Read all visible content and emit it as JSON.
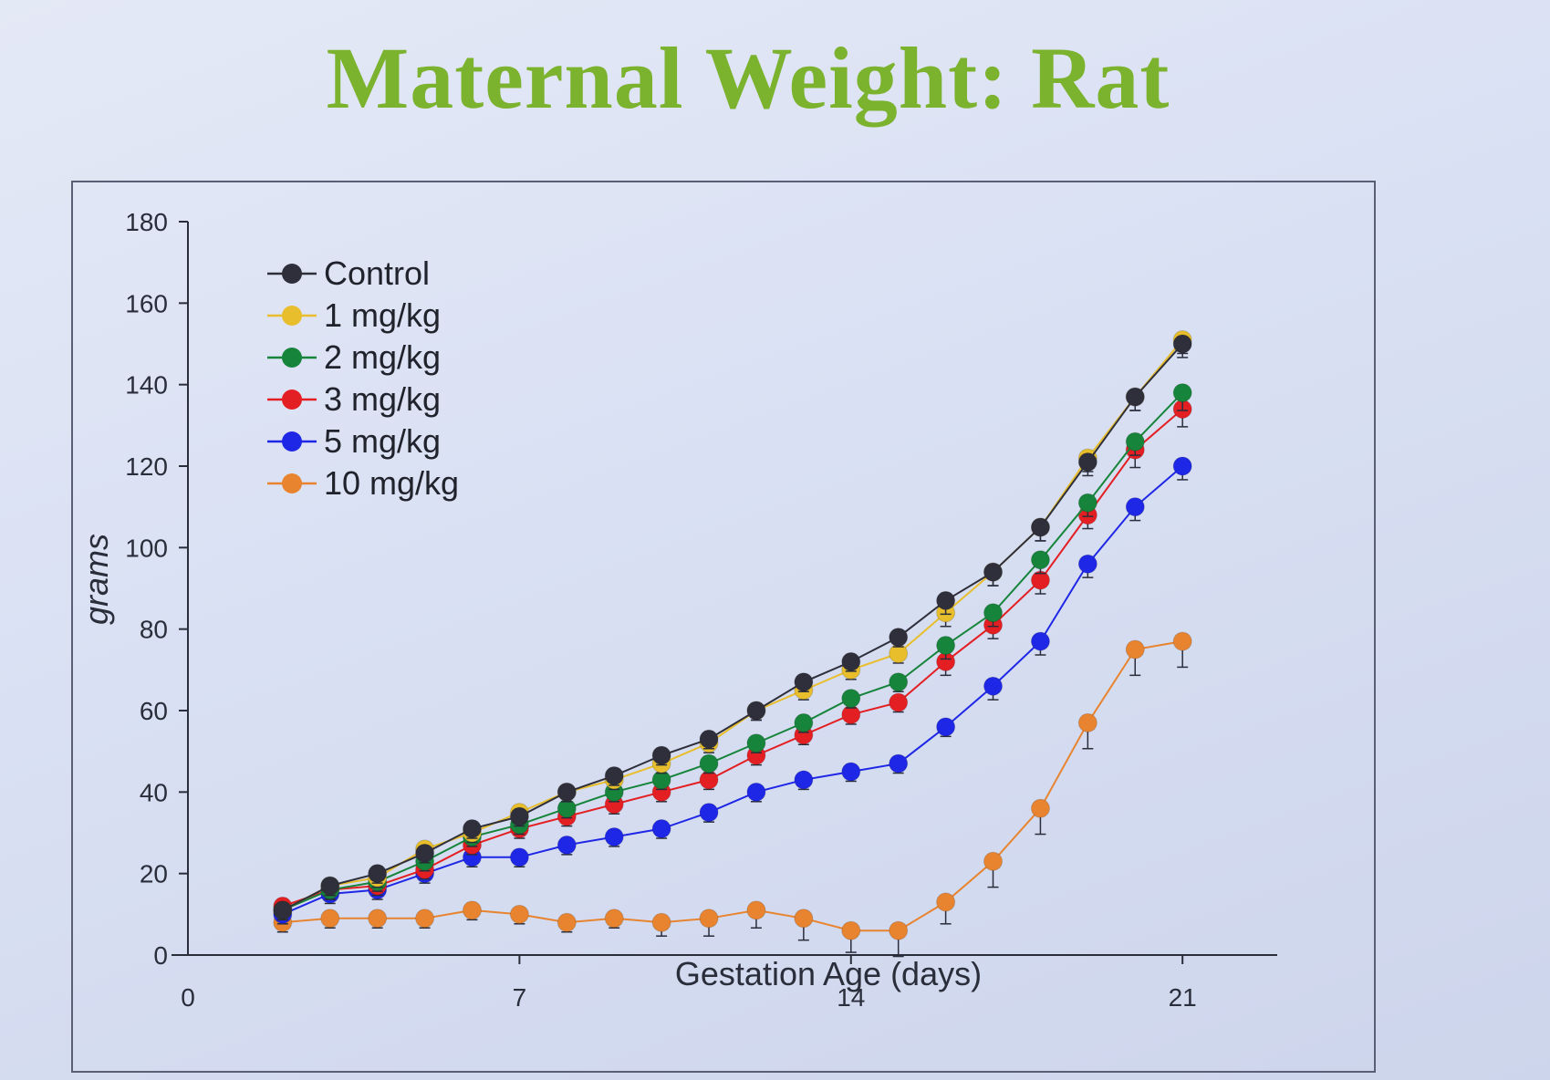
{
  "slide": {
    "title": "Maternal Weight: Rat"
  },
  "colors": {
    "axis": "#2a2d3a",
    "series": [
      "#2e2f3a",
      "#e8be2c",
      "#16843a",
      "#e41f23",
      "#1f27e6",
      "#e8842f"
    ]
  },
  "chart_data": {
    "type": "line",
    "title": "Maternal Weight: Rat",
    "xlabel": "Gestation Age (days)",
    "ylabel": "grams",
    "xlim": [
      0,
      23
    ],
    "ylim": [
      0,
      180
    ],
    "xticks": [
      0,
      7,
      14,
      21
    ],
    "yticks": [
      0,
      20,
      40,
      60,
      80,
      100,
      120,
      140,
      160,
      180
    ],
    "grid": false,
    "legend_position": "top-left",
    "error_bars": true,
    "x": [
      2,
      3,
      4,
      5,
      6,
      7,
      8,
      9,
      10,
      11,
      12,
      13,
      14,
      15,
      16,
      17,
      18,
      19,
      20,
      21
    ],
    "series": [
      {
        "name": "Control",
        "values": [
          11,
          17,
          20,
          25,
          31,
          34,
          40,
          44,
          49,
          53,
          60,
          67,
          72,
          78,
          87,
          94,
          105,
          121,
          137,
          150
        ]
      },
      {
        "name": "1 mg/kg",
        "values": [
          11,
          17,
          19,
          26,
          30,
          35,
          40,
          43,
          47,
          52,
          60,
          65,
          70,
          74,
          84,
          94,
          105,
          122,
          137,
          151
        ]
      },
      {
        "name": "2 mg/kg",
        "values": [
          11,
          16,
          18,
          23,
          29,
          32,
          36,
          40,
          43,
          47,
          52,
          57,
          63,
          67,
          76,
          84,
          97,
          111,
          126,
          138
        ]
      },
      {
        "name": "3 mg/kg",
        "values": [
          12,
          16,
          17,
          21,
          27,
          31,
          34,
          37,
          40,
          43,
          49,
          54,
          59,
          62,
          72,
          81,
          92,
          108,
          124,
          134
        ]
      },
      {
        "name": "5 mg/kg",
        "values": [
          10,
          15,
          16,
          20,
          24,
          24,
          27,
          29,
          31,
          35,
          40,
          43,
          45,
          47,
          56,
          66,
          77,
          96,
          110,
          120
        ]
      },
      {
        "name": "10 mg/kg",
        "values": [
          8,
          9,
          9,
          9,
          11,
          10,
          8,
          9,
          8,
          9,
          11,
          9,
          6,
          6,
          13,
          23,
          36,
          57,
          75,
          77
        ]
      }
    ],
    "errors": [
      [
        1,
        1,
        1,
        1,
        1,
        1,
        1,
        1,
        1,
        1,
        1,
        1,
        1,
        1,
        2,
        2,
        2,
        2,
        2,
        2
      ],
      [
        1,
        1,
        1,
        1,
        1,
        1,
        1,
        1,
        1,
        1,
        1,
        1,
        1,
        1,
        2,
        2,
        2,
        2,
        2,
        2
      ],
      [
        1,
        1,
        1,
        1,
        1,
        1,
        1,
        1,
        1,
        1,
        1,
        1,
        1,
        1,
        2,
        2,
        2,
        2,
        2,
        3
      ],
      [
        1,
        1,
        1,
        1,
        1,
        1,
        1,
        1,
        1,
        1,
        1,
        1,
        1,
        1,
        2,
        2,
        2,
        2,
        3,
        3
      ],
      [
        1,
        1,
        1,
        1,
        1,
        1,
        1,
        1,
        1,
        1,
        1,
        1,
        1,
        1,
        1,
        2,
        2,
        2,
        2,
        2
      ],
      [
        1,
        1,
        1,
        1,
        1,
        1,
        1,
        1,
        2,
        3,
        3,
        4,
        4,
        5,
        4,
        5,
        5,
        5,
        5,
        5
      ]
    ]
  }
}
